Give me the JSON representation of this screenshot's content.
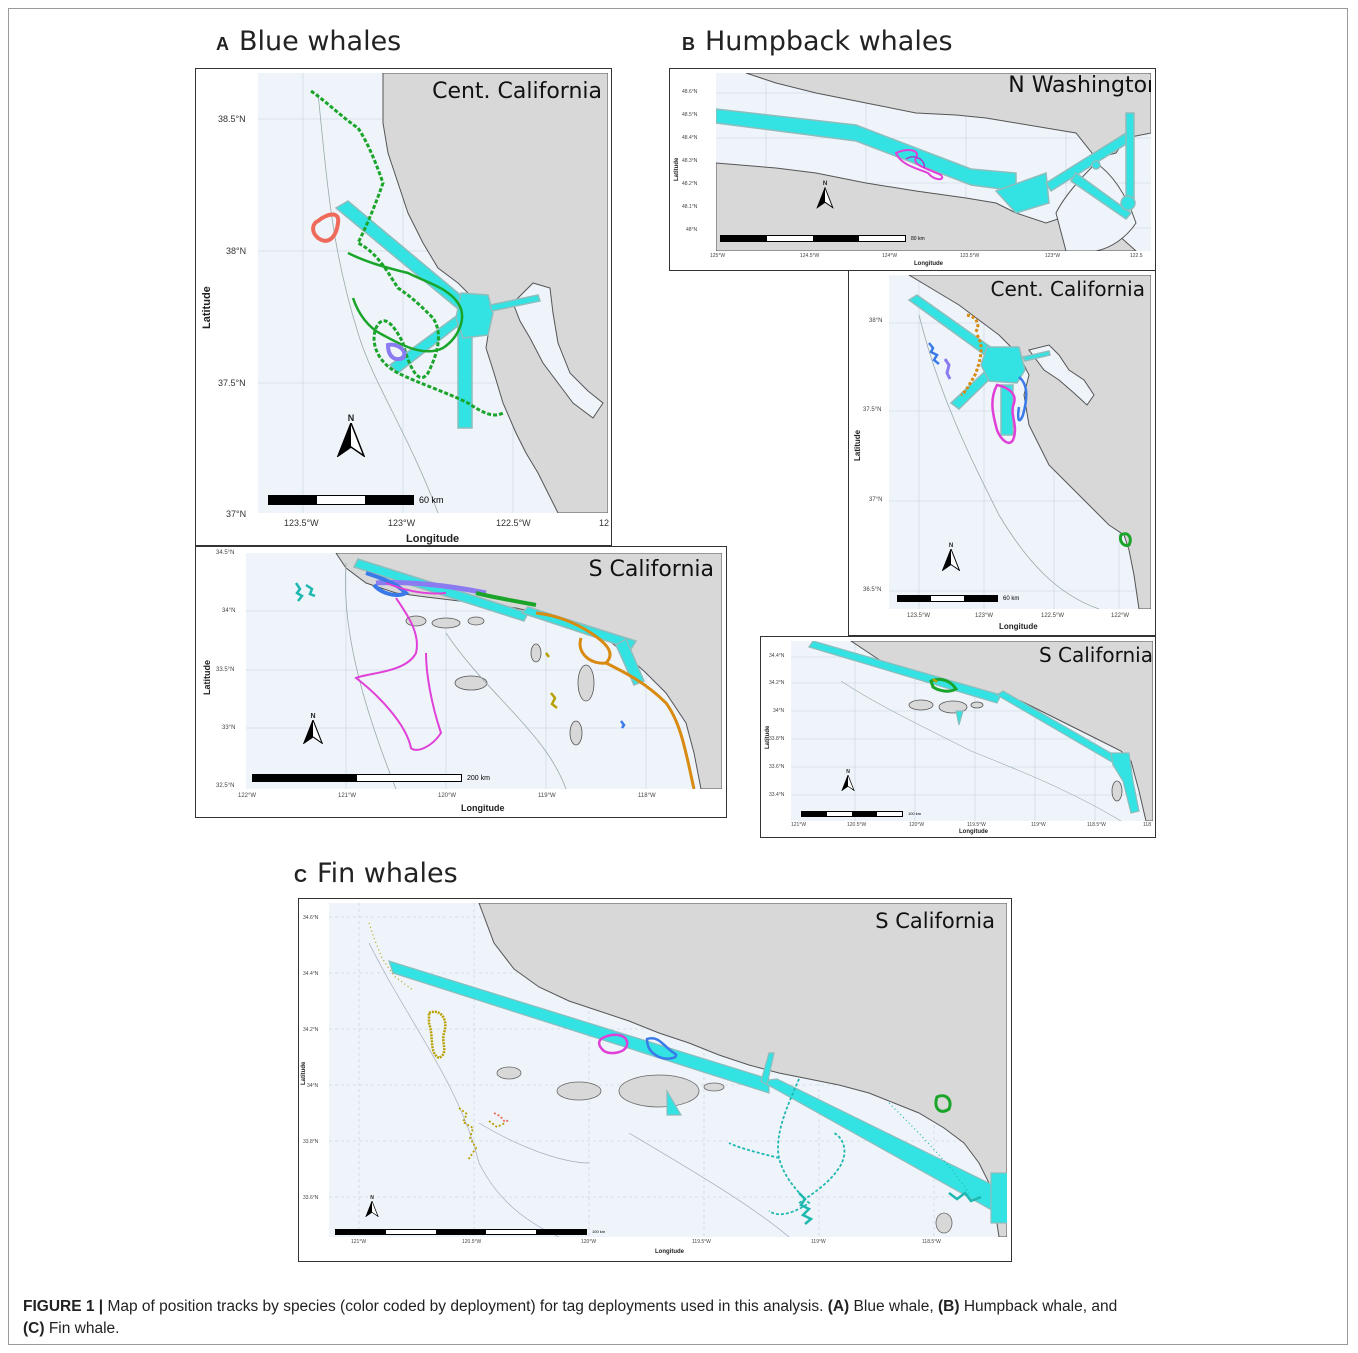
{
  "figure": {
    "caption": {
      "label": "FIGURE 1 |",
      "text1": " Map of position tracks by species (color coded by deployment) for tag deployments used in this analysis. ",
      "a_label": "(A)",
      "a_text": " Blue whale, ",
      "b_label": "(B)",
      "b_text": " Humpback whale, and",
      "c_label": "(C)",
      "c_text": " Fin whale."
    },
    "sections": [
      {
        "letter": "A",
        "title": "Blue whales"
      },
      {
        "letter": "B",
        "title": "Humpback whales"
      },
      {
        "letter": "C",
        "title": "Fin whales"
      }
    ],
    "panels": {
      "blue_cent_cal": {
        "region": "Cent. California",
        "ylabel": "Latitude",
        "xlabel": "Longitude",
        "yticks": [
          "38.5°N",
          "38°N",
          "37.5°N",
          "37°N"
        ],
        "xticks": [
          "123.5°W",
          "123°W",
          "122.5°W",
          "12"
        ],
        "scale": "60 km"
      },
      "blue_s_cal": {
        "region": "S California",
        "ylabel": "Latitude",
        "xlabel": "Longitude",
        "yticks": [
          "34.5°N",
          "34°N",
          "33.5°N",
          "33°N",
          "32.5°N"
        ],
        "xticks": [
          "122°W",
          "121°W",
          "120°W",
          "119°W",
          "118°W"
        ],
        "scale": "200 km"
      },
      "hump_n_wash": {
        "region": "N Washington",
        "ylabel": "Latitude",
        "xlabel": "Longitude",
        "yticks": [
          "48.6°N",
          "48.5°N",
          "48.4°N",
          "48.3°N",
          "48.2°N",
          "48.1°N",
          "48°N"
        ],
        "xticks": [
          "125°W",
          "124.5°W",
          "124°W",
          "123.5°W",
          "123°W",
          "122.5"
        ],
        "scale": "80 km"
      },
      "hump_cent_cal": {
        "region": "Cent. California",
        "ylabel": "Latitude",
        "xlabel": "Longitude",
        "yticks": [
          "38°N",
          "37.5°N",
          "37°N",
          "36.5°N"
        ],
        "xticks": [
          "123.5°W",
          "123°W",
          "122.5°W",
          "122°W"
        ],
        "scale": "60 km"
      },
      "hump_s_cal": {
        "region": "S California",
        "ylabel": "Latitude",
        "xlabel": "Longitude",
        "yticks": [
          "34.4°N",
          "34.2°N",
          "34°N",
          "33.8°N",
          "33.6°N",
          "33.4°N"
        ],
        "xticks": [
          "121°W",
          "120.5°W",
          "120°W",
          "119.5°W",
          "119°W",
          "118.5°W",
          "118"
        ],
        "scale": "100 km"
      },
      "fin_s_cal": {
        "region": "S California",
        "ylabel": "Latitude",
        "xlabel": "Longitude",
        "yticks": [
          "34.6°N",
          "34.4°N",
          "34.2°N",
          "34°N",
          "33.8°N",
          "33.6°N"
        ],
        "xticks": [
          "121°W",
          "120.5°W",
          "120°W",
          "119.5°W",
          "119°W",
          "118.5°W"
        ],
        "scale": "100 km"
      }
    },
    "north_label": "N",
    "colors": {
      "land": "#d8d8d8",
      "ocean": "#eef4fa",
      "shipping_lane": "#33e3e3",
      "lane_border": "#8fbcbc",
      "track_green": "#1aa52a",
      "track_red": "#ef6a5a",
      "track_purple": "#8a7cf0",
      "track_magenta": "#e040d8",
      "track_teal": "#1fb8b0",
      "track_orange": "#d98a10",
      "track_olive": "#b8a000",
      "track_blue": "#3a7ae8"
    }
  }
}
